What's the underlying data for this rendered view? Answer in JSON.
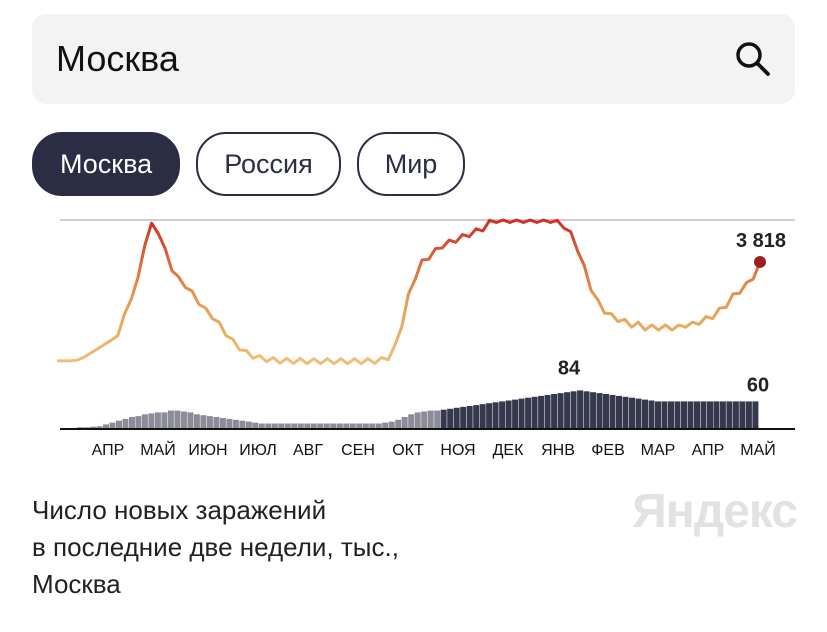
{
  "search": {
    "value": "Москва"
  },
  "tabs": [
    {
      "label": "Москва",
      "active": true
    },
    {
      "label": "Россия",
      "active": false
    },
    {
      "label": "Мир",
      "active": false
    }
  ],
  "colors": {
    "accent": "#2b2d44",
    "line_low": "#e6b368",
    "line_high": "#d63a2d",
    "last_point": "#9b1f1f",
    "bars": "#2b2d44"
  },
  "chart_data": {
    "type": "line",
    "note_series": [
      {
        "values": [
          0.32,
          0.32,
          0.33,
          0.35,
          0.45,
          0.6,
          0.75,
          0.9,
          1.05,
          1.3,
          1.9,
          2.6,
          3.2,
          4.5,
          5.1,
          4.9,
          4.2,
          3.6,
          3.2,
          3.0,
          2.7,
          2.4,
          2.1,
          1.9,
          1.6,
          1.3,
          1.0,
          0.8,
          0.6,
          0.5,
          0.42,
          0.38,
          0.35,
          0.33,
          0.32,
          0.32,
          0.32,
          0.31,
          0.31,
          0.31,
          0.31,
          0.31,
          0.31,
          0.31,
          0.31,
          0.31,
          0.31,
          0.32,
          0.35,
          0.45,
          0.8,
          1.6,
          2.6,
          3.3,
          3.8,
          4.0,
          4.2,
          4.4,
          4.5,
          4.6,
          4.7,
          4.8,
          4.9,
          5.0,
          5.2,
          5.3,
          5.3,
          5.3,
          5.3,
          5.3,
          5.3,
          5.3,
          5.3,
          5.3,
          5.2,
          5.1,
          4.8,
          4.3,
          3.6,
          2.9,
          2.4,
          2.1,
          1.9,
          1.8,
          1.7,
          1.6,
          1.6,
          1.5,
          1.5,
          1.5,
          1.5,
          1.5,
          1.5,
          1.6,
          1.6,
          1.7,
          1.8,
          1.9,
          2.1,
          2.3,
          2.6,
          2.8,
          3.0,
          3.3,
          3.818
        ],
        "ylim": [
          0,
          5.3
        ]
      },
      {
        "values": [
          4,
          4,
          5,
          6,
          10,
          14,
          18,
          22,
          26,
          28,
          32,
          34,
          36,
          36,
          40,
          40,
          38,
          36,
          32,
          30,
          28,
          26,
          24,
          22,
          20,
          18,
          16,
          14,
          12,
          12,
          12,
          12,
          12,
          12,
          12,
          12,
          12,
          12,
          12,
          12,
          12,
          12,
          12,
          12,
          12,
          12,
          12,
          14,
          16,
          20,
          26,
          32,
          36,
          38,
          40,
          40,
          42,
          44,
          46,
          48,
          50,
          52,
          54,
          56,
          58,
          60,
          62,
          64,
          66,
          68,
          70,
          72,
          74,
          76,
          78,
          80,
          82,
          84,
          82,
          80,
          78,
          76,
          74,
          72,
          70,
          68,
          66,
          64,
          62,
          60,
          60,
          60,
          60,
          60,
          60,
          60,
          60,
          60,
          60,
          60,
          60,
          60,
          60,
          60,
          60
        ],
        "ylim": [
          0,
          100
        ]
      }
    ],
    "value_labels": {
      "line_last": "3 818",
      "bars_peak": "84",
      "bars_last": "60"
    },
    "months": [
      "АПР",
      "МАЙ",
      "ИЮН",
      "ИЮЛ",
      "АВГ",
      "СЕН",
      "ОКТ",
      "НОЯ",
      "ДЕК",
      "ЯНВ",
      "ФЕВ",
      "МАР",
      "АПР",
      "МАЙ"
    ],
    "ylim": [
      0,
      5.3
    ],
    "grid": false
  },
  "caption": {
    "line1": "Число новых заражений",
    "line2": "в последние две недели, тыс.,",
    "line3": "Москва"
  },
  "logo": {
    "text": "Яндекс"
  }
}
